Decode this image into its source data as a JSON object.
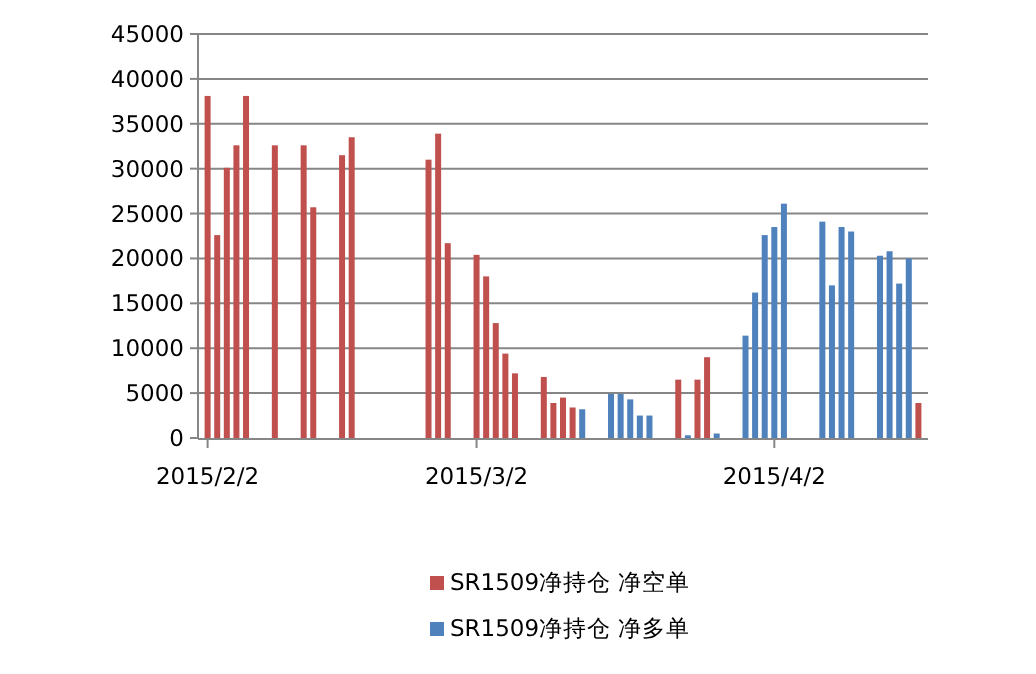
{
  "chart_data": {
    "type": "bar",
    "legend": "bottom",
    "grid": "y",
    "xlim": [
      "2015-02-01",
      "2015-04-18"
    ],
    "xticks": [
      {
        "value": "2015-02-02",
        "label": "2015/2/2"
      },
      {
        "value": "2015-03-02",
        "label": "2015/3/2"
      },
      {
        "value": "2015-04-02",
        "label": "2015/4/2"
      }
    ],
    "ylim": [
      0,
      45000
    ],
    "yticks": [
      0,
      5000,
      10000,
      15000,
      20000,
      25000,
      30000,
      35000,
      40000,
      45000
    ],
    "series": [
      {
        "name": "SR1509净持仓 净空单",
        "color": "#c0504d",
        "x": [
          "2015-02-02",
          "2015-02-03",
          "2015-02-04",
          "2015-02-05",
          "2015-02-06",
          "2015-02-09",
          "2015-02-12",
          "2015-02-13",
          "2015-02-16",
          "2015-02-17",
          "2015-02-25",
          "2015-02-26",
          "2015-02-27",
          "2015-03-02",
          "2015-03-03",
          "2015-03-04",
          "2015-03-05",
          "2015-03-06",
          "2015-03-09",
          "2015-03-10",
          "2015-03-11",
          "2015-03-12",
          "2015-03-23",
          "2015-03-25",
          "2015-03-26",
          "2015-04-17"
        ],
        "values": [
          38100,
          22600,
          30100,
          32600,
          38100,
          32600,
          32600,
          25700,
          31500,
          33500,
          31000,
          33900,
          21700,
          20400,
          18000,
          12800,
          9400,
          7200,
          6800,
          3900,
          4500,
          3400,
          6500,
          6500,
          9000,
          3900
        ]
      },
      {
        "name": "SR1509净持仓 净多单",
        "color": "#4f81bd",
        "x": [
          "2015-03-13",
          "2015-03-16",
          "2015-03-17",
          "2015-03-18",
          "2015-03-19",
          "2015-03-20",
          "2015-03-24",
          "2015-03-27",
          "2015-03-30",
          "2015-03-31",
          "2015-04-01",
          "2015-04-02",
          "2015-04-03",
          "2015-04-07",
          "2015-04-08",
          "2015-04-09",
          "2015-04-10",
          "2015-04-13",
          "2015-04-14",
          "2015-04-15",
          "2015-04-16"
        ],
        "values": [
          3200,
          4900,
          4900,
          4300,
          2500,
          2500,
          300,
          500,
          11400,
          16200,
          22600,
          23500,
          26100,
          24100,
          17000,
          23500,
          23000,
          20300,
          20800,
          17200,
          20000
        ]
      }
    ]
  }
}
